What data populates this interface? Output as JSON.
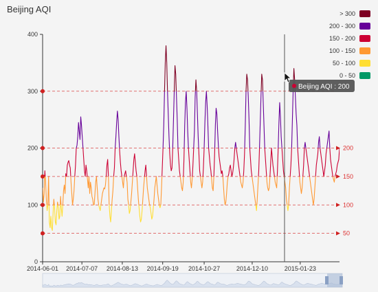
{
  "chart_data": {
    "type": "line",
    "title": "Beijing AQI",
    "series_name": "Beijing AQI",
    "xlabel": "",
    "ylabel": "",
    "ylim": [
      0,
      400
    ],
    "y_ticks": [
      0,
      100,
      200,
      300,
      400
    ],
    "x_tick_labels": [
      "2014-06-01",
      "2014-07-07",
      "2014-08-13",
      "2014-09-19",
      "2014-10-27",
      "2014-12-10",
      "2015-01-23"
    ],
    "x_start": "2014-06-01",
    "x_end": "2015-02-28",
    "grid": false,
    "legend": "top-right",
    "visual_map": [
      {
        "label": "> 300",
        "color": "#7e0023"
      },
      {
        "label": "200 - 300",
        "color": "#660099"
      },
      {
        "label": "150 - 200",
        "color": "#cc0033"
      },
      {
        "label": "100 - 150",
        "color": "#ff9933"
      },
      {
        "label": "50 - 100",
        "color": "#ffde33"
      },
      {
        "label": "0 - 50",
        "color": "#096"
      }
    ],
    "mark_lines": [
      50,
      100,
      150,
      200,
      300
    ],
    "mark_line_labels_right": [
      "200",
      "150",
      "100",
      "50"
    ],
    "tooltip": {
      "series": "Beijing AQI",
      "value": "200"
    },
    "values": [
      130,
      105,
      120,
      160,
      140,
      110,
      90,
      100,
      150,
      70,
      60,
      80,
      60,
      55,
      85,
      110,
      95,
      70,
      65,
      90,
      105,
      95,
      75,
      80,
      115,
      95,
      80,
      100,
      125,
      135,
      120,
      155,
      150,
      170,
      175,
      178,
      170,
      165,
      140,
      120,
      100,
      110,
      125,
      150,
      170,
      200,
      205,
      220,
      245,
      230,
      215,
      255,
      240,
      220,
      200,
      180,
      160,
      150,
      170,
      160,
      145,
      130,
      150,
      120,
      140,
      130,
      115,
      110,
      100,
      100,
      120,
      140,
      150,
      130,
      110,
      100,
      95,
      90,
      100,
      110,
      120,
      125,
      130,
      128,
      135,
      150,
      170,
      180,
      150,
      100,
      80,
      70,
      90,
      110,
      125,
      150,
      165,
      200,
      220,
      245,
      265,
      250,
      220,
      195,
      175,
      160,
      150,
      140,
      130,
      150,
      155,
      160,
      150,
      140,
      110,
      100,
      85,
      90,
      105,
      120,
      140,
      160,
      180,
      190,
      175,
      160,
      150,
      130,
      110,
      95,
      80,
      70,
      75,
      90,
      110,
      130,
      145,
      160,
      170,
      150,
      130,
      120,
      110,
      100,
      95,
      85,
      75,
      80,
      95,
      110,
      130,
      140,
      150,
      135,
      120,
      110,
      100,
      95,
      100,
      130,
      165,
      200,
      240,
      300,
      350,
      380,
      350,
      300,
      260,
      220,
      190,
      170,
      160,
      165,
      200,
      250,
      300,
      345,
      330,
      290,
      250,
      200,
      180,
      160,
      150,
      140,
      130,
      125,
      140,
      180,
      240,
      280,
      300,
      270,
      230,
      200,
      180,
      160,
      140,
      130,
      145,
      170,
      200,
      230,
      290,
      320,
      300,
      260,
      220,
      190,
      160,
      150,
      140,
      130,
      140,
      165,
      200,
      245,
      280,
      300,
      275,
      240,
      200,
      185,
      170,
      160,
      145,
      130,
      125,
      150,
      190,
      240,
      270,
      260,
      230,
      205,
      185,
      175,
      165,
      155,
      160,
      150,
      130,
      110,
      100,
      105,
      120,
      140,
      150,
      155,
      165,
      170,
      160,
      150,
      155,
      165,
      180,
      200,
      210,
      200,
      190,
      180,
      170,
      160,
      150,
      140,
      135,
      130,
      140,
      160,
      190,
      240,
      300,
      330,
      320,
      290,
      250,
      200,
      180,
      160,
      150,
      140,
      130,
      120,
      110,
      100,
      90,
      110,
      135,
      160,
      200,
      245,
      290,
      330,
      320,
      280,
      240,
      200,
      180,
      160,
      140,
      130,
      125,
      130,
      150,
      175,
      200,
      185,
      170,
      160,
      150,
      140,
      135,
      130,
      160,
      200,
      245,
      280,
      255,
      220,
      200,
      180,
      160,
      150,
      140,
      130,
      110,
      100,
      90,
      100,
      130,
      150,
      170,
      200,
      250,
      300,
      340,
      320,
      290,
      260,
      240,
      200,
      180,
      160,
      140,
      130,
      120,
      130,
      150,
      170,
      200,
      210,
      200,
      190,
      180,
      170,
      160,
      150,
      140,
      130,
      120,
      110,
      100,
      110,
      130,
      150,
      170,
      180,
      190,
      210,
      220,
      200,
      190,
      180,
      170,
      160,
      150,
      160,
      170,
      190,
      200,
      210,
      220,
      230,
      200,
      180,
      170,
      160,
      150,
      145,
      140,
      150,
      155,
      160,
      170,
      175,
      180,
      200
    ]
  }
}
